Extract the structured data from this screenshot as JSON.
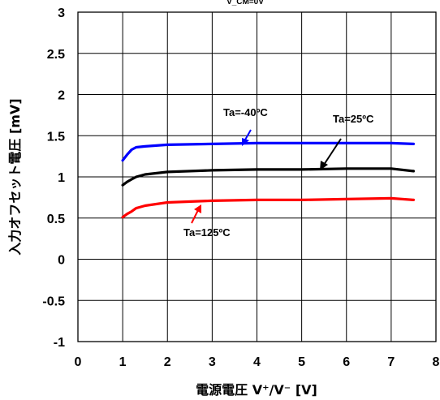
{
  "chart_data": {
    "type": "line",
    "condition_label": "V_CM=0V",
    "xlabel": "電源電圧 V⁺/V⁻ [V]",
    "ylabel": "入力オフセット電圧 [mV]",
    "xlim": [
      0,
      8
    ],
    "ylim": [
      -1,
      3
    ],
    "x_ticks": [
      "0",
      "1",
      "2",
      "3",
      "4",
      "5",
      "6",
      "7",
      "8"
    ],
    "y_ticks": [
      "-1",
      "-0.5",
      "0",
      "0.5",
      "1",
      "1.5",
      "2",
      "2.5",
      "3"
    ],
    "grid": true,
    "series": [
      {
        "name": "Ta=-40ºC",
        "color": "#0000ff",
        "points": [
          [
            1.0,
            1.2
          ],
          [
            1.1,
            1.27
          ],
          [
            1.2,
            1.33
          ],
          [
            1.3,
            1.36
          ],
          [
            1.5,
            1.37
          ],
          [
            2,
            1.39
          ],
          [
            3,
            1.4
          ],
          [
            4,
            1.41
          ],
          [
            5,
            1.41
          ],
          [
            6,
            1.41
          ],
          [
            7,
            1.41
          ],
          [
            7.5,
            1.4
          ]
        ]
      },
      {
        "name": "Ta=25ºC",
        "color": "#000000",
        "points": [
          [
            1.0,
            0.9
          ],
          [
            1.1,
            0.94
          ],
          [
            1.2,
            0.97
          ],
          [
            1.3,
            1.0
          ],
          [
            1.5,
            1.03
          ],
          [
            2,
            1.06
          ],
          [
            3,
            1.08
          ],
          [
            4,
            1.09
          ],
          [
            5,
            1.09
          ],
          [
            6,
            1.1
          ],
          [
            7,
            1.1
          ],
          [
            7.5,
            1.07
          ]
        ]
      },
      {
        "name": "Ta=125ºC",
        "color": "#ff0000",
        "points": [
          [
            1.0,
            0.51
          ],
          [
            1.1,
            0.55
          ],
          [
            1.2,
            0.58
          ],
          [
            1.3,
            0.62
          ],
          [
            1.5,
            0.65
          ],
          [
            2,
            0.69
          ],
          [
            3,
            0.71
          ],
          [
            4,
            0.72
          ],
          [
            5,
            0.72
          ],
          [
            6,
            0.73
          ],
          [
            7,
            0.74
          ],
          [
            7.5,
            0.72
          ]
        ]
      }
    ],
    "annotations": [
      {
        "text": "Ta=-40ºC",
        "series": "Ta=-40ºC"
      },
      {
        "text": "Ta=25ºC",
        "series": "Ta=25ºC"
      },
      {
        "text": "Ta=125ºC",
        "series": "Ta=125ºC"
      }
    ]
  }
}
